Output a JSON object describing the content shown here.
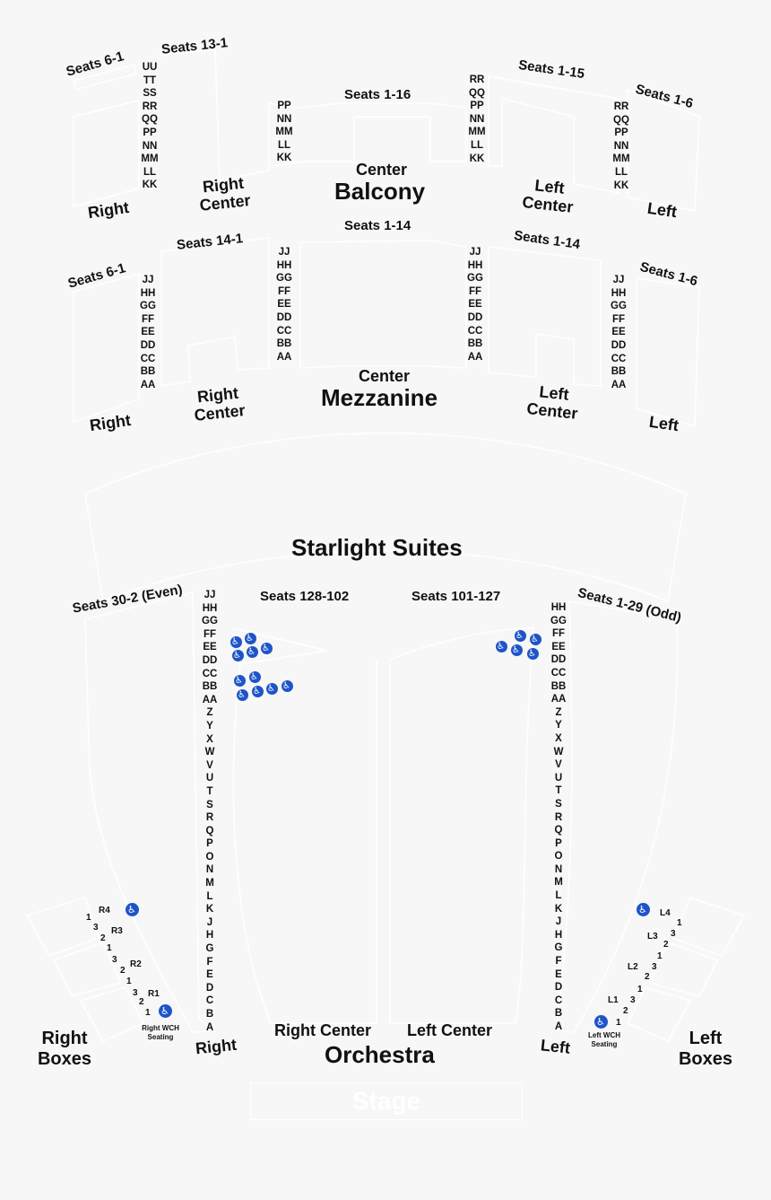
{
  "balcony": {
    "title": "Balcony",
    "center": "Center",
    "seats_right_a": "Seats 6-1",
    "seats_right_b": "Seats 13-1",
    "seats_center": "Seats 1-16",
    "seats_left_a": "Seats 1-15",
    "seats_left_b": "Seats 1-6",
    "right": "Right",
    "right_center": "Right Center",
    "left_center": "Left Center",
    "left": "Left",
    "rows_right": [
      "UU",
      "TT",
      "SS",
      "RR",
      "QQ",
      "PP",
      "NN",
      "MM",
      "LL",
      "KK"
    ],
    "rows_center_r": [
      "PP",
      "NN",
      "MM",
      "LL",
      "KK"
    ],
    "rows_center_l": [
      "RR",
      "QQ",
      "PP",
      "NN",
      "MM",
      "LL",
      "KK"
    ],
    "rows_left": [
      "RR",
      "QQ",
      "PP",
      "NN",
      "MM",
      "LL",
      "KK"
    ]
  },
  "mezzanine": {
    "title": "Mezzanine",
    "center": "Center",
    "seats_right_a": "Seats 6-1",
    "seats_right_b": "Seats 14-1",
    "seats_center": "Seats 1-14",
    "seats_left_a": "Seats 1-14",
    "seats_left_b": "Seats 1-6",
    "right": "Right",
    "right_center": "Right Center",
    "left_center": "Left Center",
    "left": "Left",
    "rows": [
      "JJ",
      "HH",
      "GG",
      "FF",
      "EE",
      "DD",
      "CC",
      "BB",
      "AA"
    ]
  },
  "suites": {
    "title": "Starlight Suites"
  },
  "orchestra": {
    "title": "Orchestra",
    "seats_right": "Seats 30-2 (Even)",
    "seats_right_center": "Seats 128-102",
    "seats_left_center": "Seats 101-127",
    "seats_left": "Seats 1-29 (Odd)",
    "right": "Right",
    "right_center": "Right Center",
    "left_center": "Left Center",
    "left": "Left",
    "rows_right": [
      "JJ",
      "HH",
      "GG",
      "FF",
      "EE",
      "DD",
      "CC",
      "BB",
      "AA",
      "Z",
      "Y",
      "X",
      "W",
      "V",
      "U",
      "T",
      "S",
      "R",
      "Q",
      "P",
      "O",
      "N",
      "M",
      "L",
      "K",
      "J",
      "H",
      "G",
      "F",
      "E",
      "D",
      "C",
      "B",
      "A"
    ],
    "rows_left": [
      "HH",
      "GG",
      "FF",
      "EE",
      "DD",
      "CC",
      "BB",
      "AA",
      "Z",
      "Y",
      "X",
      "W",
      "V",
      "U",
      "T",
      "S",
      "R",
      "Q",
      "P",
      "O",
      "N",
      "M",
      "L",
      "K",
      "J",
      "H",
      "G",
      "F",
      "E",
      "D",
      "C",
      "B",
      "A"
    ]
  },
  "boxes": {
    "right_title": "Right Boxes",
    "left_title": "Left Boxes",
    "right_wch": "Right WCH Seating",
    "left_wch": "Left WCH Seating",
    "right_labels": {
      "r4": "R4",
      "r3": "R3",
      "r2": "R2",
      "r1": "R1"
    },
    "left_labels": {
      "l4": "L4",
      "l3": "L3",
      "l2": "L2",
      "l1": "L1"
    },
    "nums": {
      "one": "1",
      "two": "2",
      "three": "3"
    }
  },
  "stage": "Stage",
  "colors": {
    "background": "#f7f7f7",
    "outline": "#ffffff",
    "wheelchair": "#1e54c9"
  }
}
